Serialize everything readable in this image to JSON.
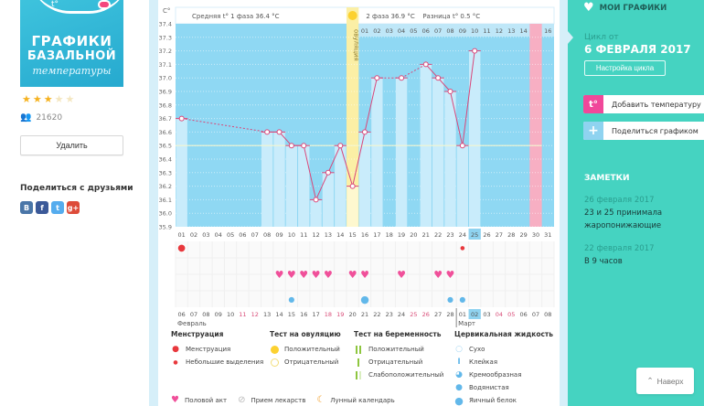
{
  "app": {
    "logo": {
      "line1": "ГРАФИКИ",
      "line2": "БАЗАЛЬНОЙ",
      "line3": "температуры",
      "superscript": "t°"
    },
    "rating": {
      "value": 3,
      "max": 5
    },
    "users_count": "21620",
    "delete_label": "Удалить",
    "share_title": "Поделиться с друзьями",
    "social": [
      {
        "name": "vk",
        "label": "В",
        "color": "#4a76a8"
      },
      {
        "name": "facebook",
        "label": "f",
        "color": "#3b5998"
      },
      {
        "name": "twitter",
        "label": "t",
        "color": "#55acee"
      },
      {
        "name": "google-plus",
        "label": "g+",
        "color": "#dd4b39"
      }
    ]
  },
  "sidebar": {
    "my_charts": "МОИ ГРАФИКИ",
    "cycle_from_label": "Цикл от",
    "cycle_date": "6 ФЕВРАЛЯ 2017",
    "cycle_settings": "Настройка цикла",
    "actions": [
      {
        "label": "Добавить температуру",
        "icon": "t°",
        "color": "#f0489a"
      },
      {
        "label": "Поделиться графиком",
        "icon": "+",
        "color": "#8fd3f0"
      }
    ],
    "notes_title": "ЗАМЕТКИ",
    "notes": [
      {
        "date": "26 февраля 2017",
        "text": "23 и 25 принимала жаропонижающие"
      },
      {
        "date": "22 февраля 2017",
        "text": "В 9 часов"
      }
    ],
    "to_top": "Наверх"
  },
  "chart_data": {
    "type": "line",
    "ylabel": "C°",
    "ylim": [
      35.9,
      37.4
    ],
    "yticks": [
      "37.4",
      "37.3",
      "37.2",
      "37.1",
      "37.0",
      "36.9",
      "36.8",
      "36.7",
      "36.6",
      "36.5",
      "36.4",
      "36.3",
      "36.2",
      "36.1",
      "36.0",
      "35.9"
    ],
    "phase1_label": "Средняя t° 1 фаза 36.4 °C",
    "phase2_label": "2 фаза 36.9 °C",
    "diff_label": "Разница t° 0.5 °C",
    "ovulation_label": "овуляция",
    "ovulation_day": 15,
    "coverline": 36.5,
    "current_day": 25,
    "pink_day": 30,
    "cycle_days": [
      "01",
      "02",
      "03",
      "04",
      "05",
      "06",
      "07",
      "08",
      "09",
      "10",
      "11",
      "12",
      "13",
      "14",
      "15",
      "16",
      "17",
      "18",
      "19",
      "20",
      "21",
      "22",
      "23",
      "24",
      "25",
      "26",
      "27",
      "28",
      "29",
      "30",
      "31"
    ],
    "post_ovulation_days": [
      "01",
      "02",
      "03",
      "04",
      "05",
      "06",
      "07",
      "08",
      "09",
      "10",
      "11",
      "12",
      "13",
      "14",
      "15",
      "16"
    ],
    "temperatures": [
      36.7,
      null,
      null,
      null,
      null,
      null,
      null,
      36.6,
      36.6,
      36.5,
      36.5,
      36.1,
      36.3,
      36.5,
      36.2,
      36.6,
      37.0,
      null,
      37.0,
      null,
      37.1,
      37.0,
      36.9,
      36.5,
      37.2,
      null,
      null,
      null,
      null,
      null,
      null
    ],
    "calendar_dates": [
      "06",
      "07",
      "08",
      "09",
      "10",
      "11",
      "12",
      "13",
      "14",
      "15",
      "16",
      "17",
      "18",
      "19",
      "20",
      "21",
      "22",
      "23",
      "24",
      "25",
      "26",
      "27",
      "28",
      "01",
      "02",
      "03",
      "04",
      "05",
      "06",
      "07",
      "08"
    ],
    "weekend_dates_idx": [
      5,
      6,
      12,
      13,
      19,
      20,
      26,
      27
    ],
    "today_idx": 24,
    "month_labels": [
      {
        "label": "Февраль",
        "start_idx": 0
      },
      {
        "label": "Март",
        "start_idx": 23
      }
    ],
    "markers": {
      "menstruation_days": [
        1
      ],
      "spotting_days": [
        24
      ],
      "intercourse_days": [
        9,
        10,
        11,
        12,
        13,
        15,
        16,
        19,
        22,
        23
      ],
      "cervical_creamy_days": [
        10,
        23
      ],
      "cervical_watery_days": [
        24
      ],
      "cervical_eggwhite_days": [
        16
      ]
    }
  },
  "legend": {
    "menstruation": {
      "title": "Менструация",
      "items": [
        "Менструация",
        "Небольшие выделения"
      ]
    },
    "ovulation_test": {
      "title": "Тест на овуляцию",
      "items": [
        "Положительный",
        "Отрицательный"
      ]
    },
    "pregnancy_test": {
      "title": "Тест на беременность",
      "items": [
        "Положительный",
        "Отрицательный",
        "Слабоположительный"
      ]
    },
    "cervical": {
      "title": "Цервикальная жидкость",
      "items": [
        "Сухо",
        "Клейкая",
        "Кремообразная",
        "Водянистая",
        "Яичный белок"
      ]
    },
    "bottom": [
      "Половой акт",
      "Прием лекарств",
      "Лунный календарь"
    ]
  },
  "colors": {
    "chart_bg": "#8fd8f3",
    "bar": "#c9ecfb",
    "line": "#d9477a",
    "ovulation": "#fbefa5",
    "pink": "#f7afc3",
    "teal": "#45d3c1",
    "heart": "#f0509a",
    "drop_blue": "#62b8ea",
    "drop_red": "#e8383d"
  }
}
